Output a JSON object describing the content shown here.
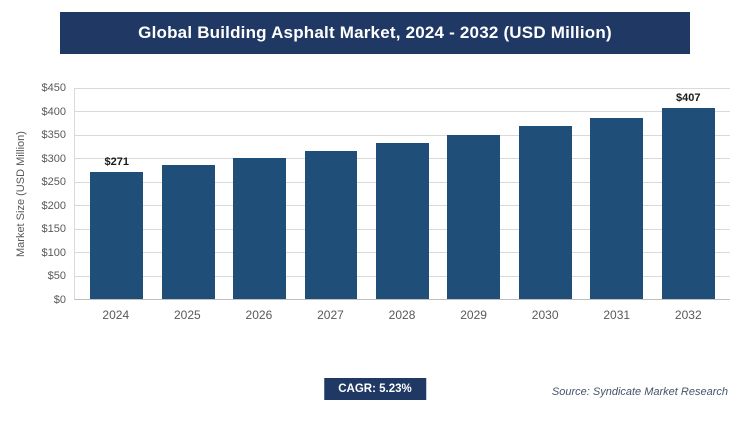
{
  "header": {
    "title": "Global Building Asphalt Market, 2024 - 2032 (USD Million)"
  },
  "footer": {
    "cagr_label": "CAGR: 5.23%",
    "source": "Source: Syndicate Market Research"
  },
  "colors": {
    "title_bar_bg": "#1f3864",
    "bar_fill": "#1f4e79",
    "badge_bg": "#1f3864",
    "gridline": "#d9d9d9",
    "axis_text": "#595959"
  },
  "chart_data": {
    "type": "bar",
    "title": "Global Building Asphalt Market, 2024 - 2032 (USD Million)",
    "categories": [
      "2024",
      "2025",
      "2026",
      "2027",
      "2028",
      "2029",
      "2030",
      "2031",
      "2032"
    ],
    "values": [
      271,
      285,
      300,
      316,
      332,
      350,
      368,
      387,
      407
    ],
    "data_labels": [
      "$271",
      "",
      "",
      "",
      "",
      "",
      "",
      "",
      "$407"
    ],
    "xlabel": "",
    "ylabel": "Market Size (USD Million)",
    "ylim": [
      0,
      450
    ],
    "ytick_step": 50,
    "ytick_prefix": "$",
    "grid": true,
    "legend": "none",
    "cagr": "5.23%"
  }
}
